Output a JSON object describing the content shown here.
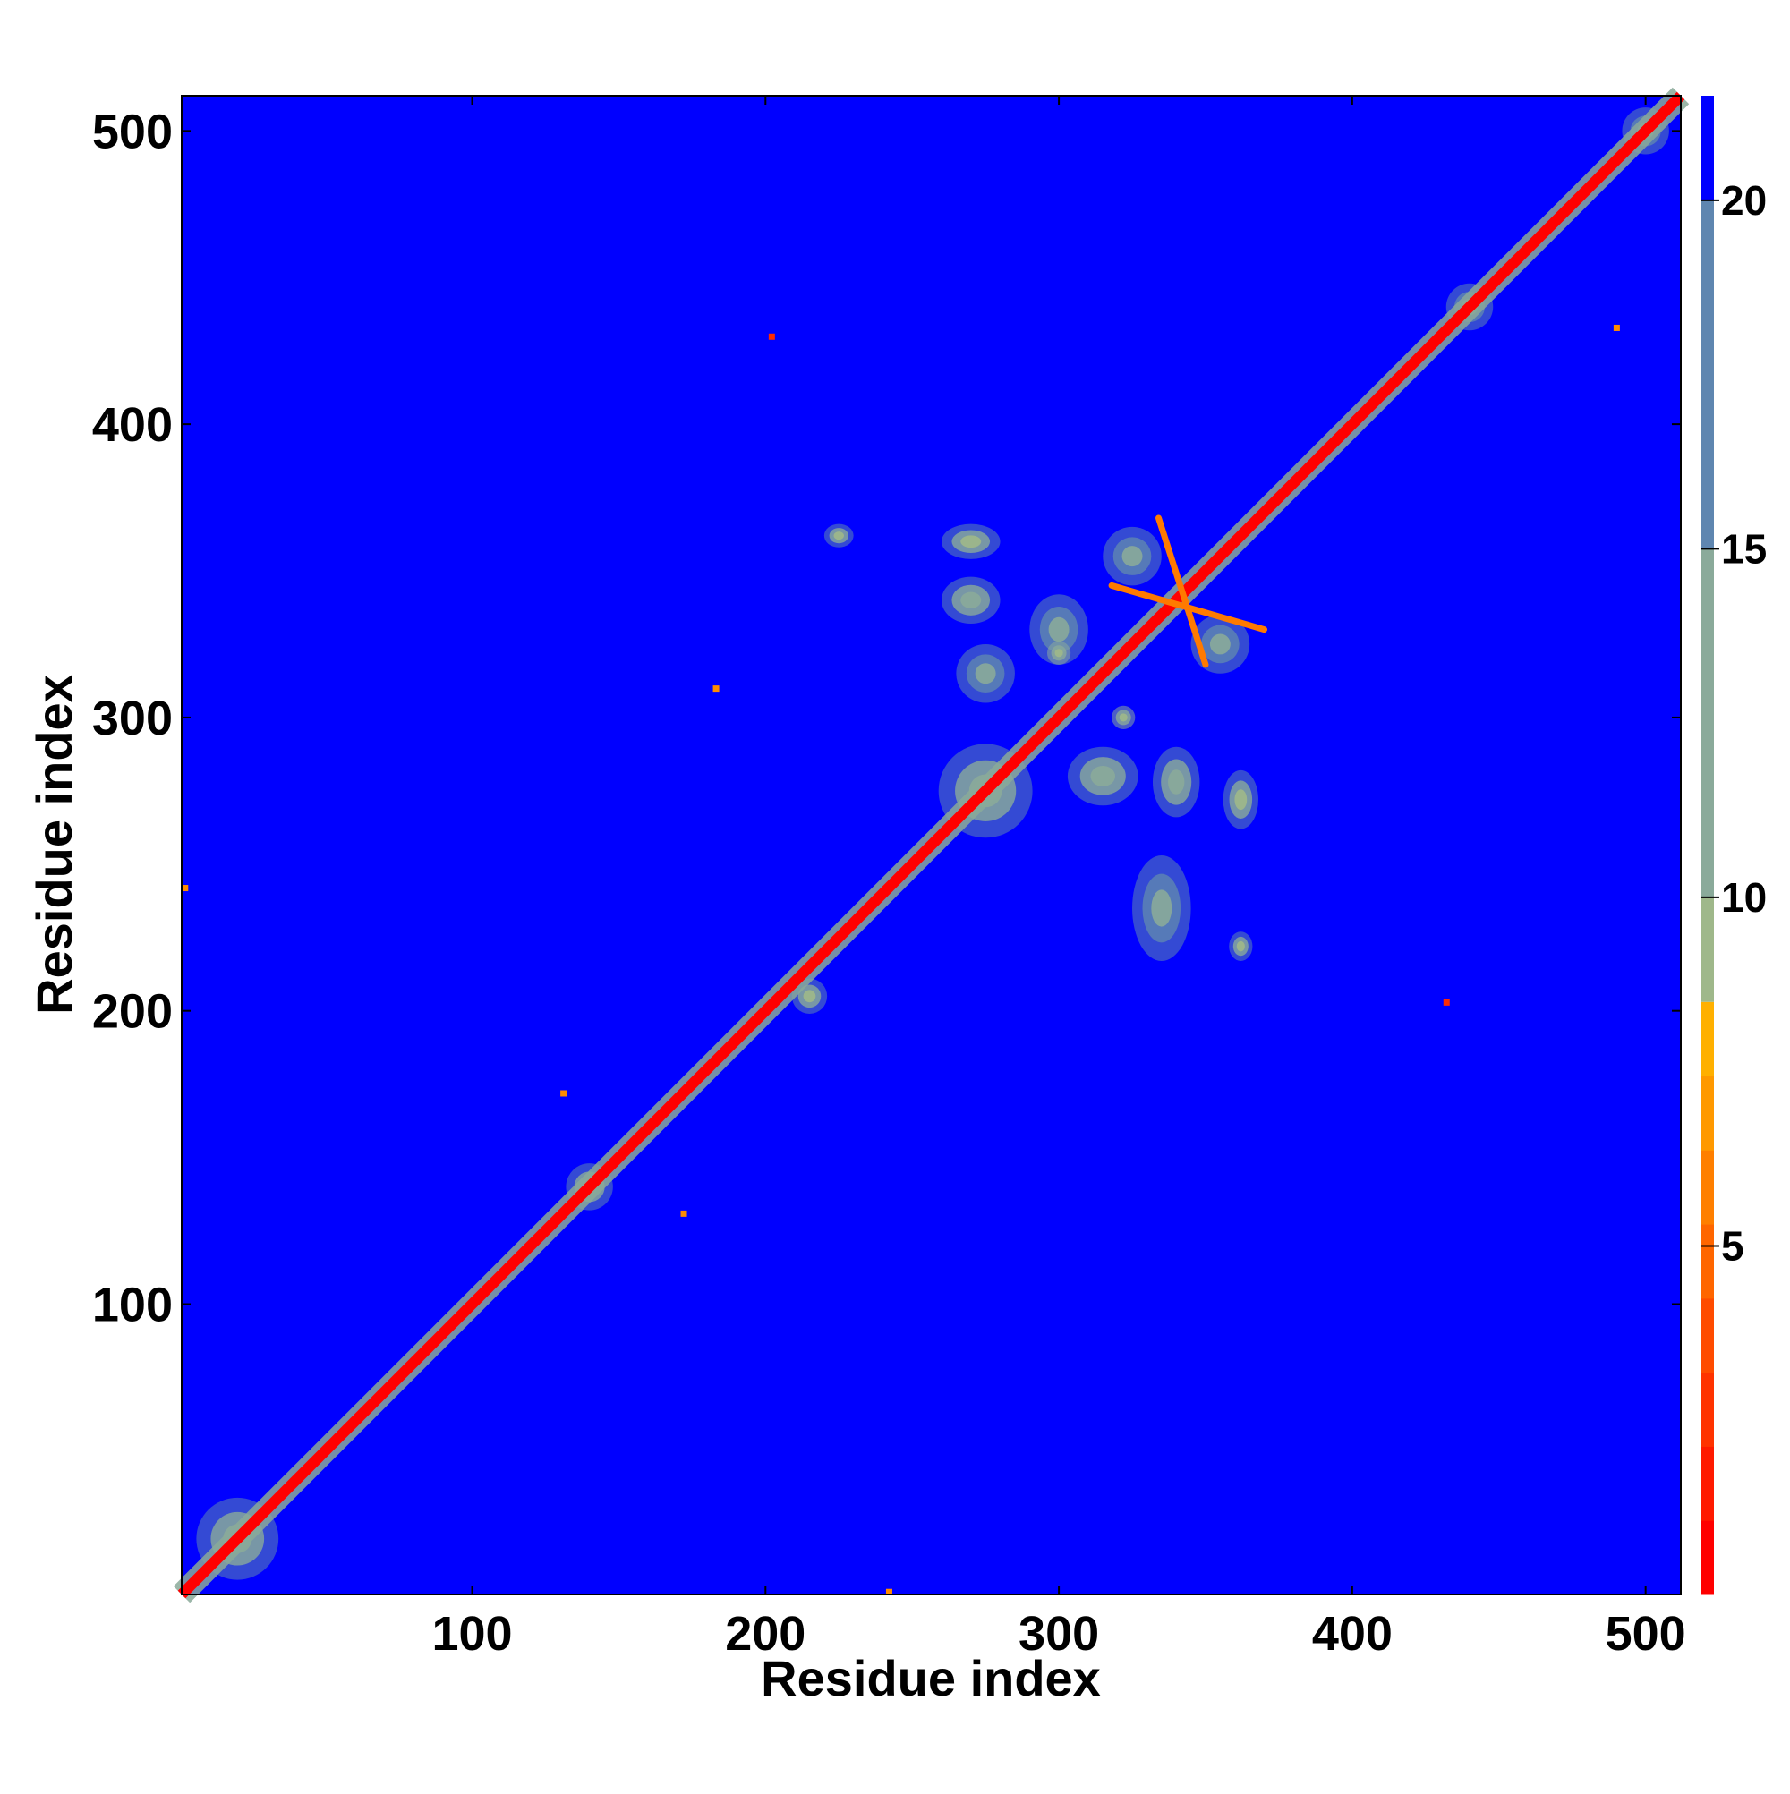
{
  "chart_data": {
    "type": "heatmap",
    "title": "",
    "xlabel": "Residue index",
    "ylabel": "Residue index",
    "xlim": [
      1,
      512
    ],
    "ylim": [
      1,
      512
    ],
    "x_ticks": [
      100,
      200,
      300,
      400,
      500
    ],
    "y_ticks": [
      100,
      200,
      300,
      400,
      500
    ],
    "colorbar": {
      "range": [
        0,
        21.5
      ],
      "ticks": [
        5,
        10,
        15,
        20
      ],
      "colors": [
        {
          "from": 0,
          "to": 8.5,
          "color": "#ff0000"
        },
        {
          "from": 8.5,
          "to": 10,
          "color": "#9fb88a"
        },
        {
          "from": 10,
          "to": 15,
          "color": "#8aaa9a"
        },
        {
          "from": 15,
          "to": 20,
          "color": "#5f86b0"
        },
        {
          "from": 20,
          "to": 21.5,
          "color": "#0000ff"
        }
      ]
    },
    "background_value": 21.5,
    "diagonal_value": 2,
    "diagonal_halo_value": 12,
    "contact_patches": [
      {
        "x": 20,
        "y": 20,
        "sx": 14,
        "sy": 14,
        "value": 13
      },
      {
        "x": 275,
        "y": 275,
        "sx": 16,
        "sy": 16,
        "value": 14
      },
      {
        "x": 270,
        "y": 360,
        "sx": 10,
        "sy": 6,
        "value": 12
      },
      {
        "x": 270,
        "y": 340,
        "sx": 10,
        "sy": 8,
        "value": 14
      },
      {
        "x": 275,
        "y": 315,
        "sx": 10,
        "sy": 10,
        "value": 15
      },
      {
        "x": 315,
        "y": 280,
        "sx": 12,
        "sy": 10,
        "value": 14
      },
      {
        "x": 340,
        "y": 278,
        "sx": 8,
        "sy": 12,
        "value": 14
      },
      {
        "x": 362,
        "y": 272,
        "sx": 6,
        "sy": 10,
        "value": 12
      },
      {
        "x": 325,
        "y": 355,
        "sx": 10,
        "sy": 10,
        "value": 15
      },
      {
        "x": 355,
        "y": 325,
        "sx": 10,
        "sy": 10,
        "value": 15
      },
      {
        "x": 300,
        "y": 330,
        "sx": 10,
        "sy": 12,
        "value": 16
      },
      {
        "x": 335,
        "y": 235,
        "sx": 10,
        "sy": 18,
        "value": 17
      },
      {
        "x": 215,
        "y": 205,
        "sx": 6,
        "sy": 6,
        "value": 12
      },
      {
        "x": 225,
        "y": 362,
        "sx": 5,
        "sy": 4,
        "value": 11
      },
      {
        "x": 362,
        "y": 222,
        "sx": 4,
        "sy": 5,
        "value": 11
      },
      {
        "x": 322,
        "y": 300,
        "sx": 4,
        "sy": 4,
        "value": 10
      },
      {
        "x": 300,
        "y": 322,
        "sx": 4,
        "sy": 4,
        "value": 10
      },
      {
        "x": 140,
        "y": 140,
        "sx": 8,
        "sy": 8,
        "value": 14
      },
      {
        "x": 440,
        "y": 440,
        "sx": 8,
        "sy": 8,
        "value": 15
      },
      {
        "x": 500,
        "y": 500,
        "sx": 8,
        "sy": 8,
        "value": 15
      }
    ],
    "antidiagonal_bands": [
      {
        "from": [
          334,
          368
        ],
        "to": [
          350,
          318
        ],
        "value": 6
      },
      {
        "from": [
          318,
          345
        ],
        "to": [
          370,
          330
        ],
        "value": 6
      }
    ],
    "isolated_contacts": [
      {
        "x": 202,
        "y": 430,
        "value": 4
      },
      {
        "x": 432,
        "y": 203,
        "value": 4
      },
      {
        "x": 131,
        "y": 172,
        "value": 6
      },
      {
        "x": 172,
        "y": 131,
        "value": 6
      },
      {
        "x": 242,
        "y": 2,
        "value": 6
      },
      {
        "x": 2,
        "y": 242,
        "value": 6
      },
      {
        "x": 490,
        "y": 433,
        "value": 6
      },
      {
        "x": 183,
        "y": 310,
        "value": 7
      }
    ]
  }
}
